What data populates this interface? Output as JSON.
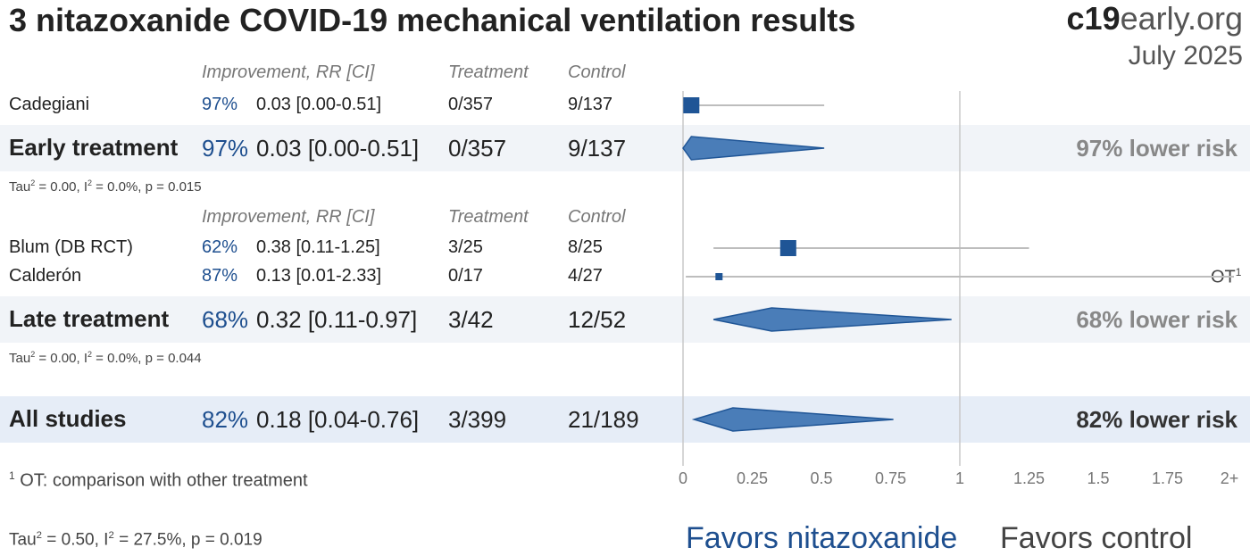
{
  "title": "3 nitazoxanide COVID-19 mechanical ventilation results",
  "brand_bold": "c19",
  "brand_rest": "early.org",
  "date": "July 2025",
  "headers": {
    "improvement": "Improvement, RR [CI]",
    "treatment": "Treatment",
    "control": "Control"
  },
  "footnote_mark": "1",
  "footnote": "OT: comparison with other treatment",
  "ot_label": "OT",
  "tau_overall": {
    "a": "Tau",
    "a_sup": "2",
    "b": " = 0.50, I",
    "b_sup": "2",
    "c": " = 27.5%, p = 0.019"
  },
  "favors_left": "Favors nitazoxanide",
  "favors_right": "Favors control",
  "colors": {
    "accent": "#1e4f8f",
    "marker": "#1f5596",
    "diamond": "#4a7db8"
  },
  "chart_data": {
    "type": "forest",
    "x_ticks": [
      "0",
      "0.25",
      "0.5",
      "0.75",
      "1",
      "1.25",
      "1.5",
      "1.75",
      "2+"
    ],
    "xlim": [
      0,
      2
    ],
    "reference_line": 1,
    "groups": [
      {
        "name": "Early treatment",
        "studies": [
          {
            "name": "Cadegiani",
            "improvement": "97%",
            "rr_text": "0.03 [0.00-0.51]",
            "rr": 0.03,
            "lo": 0.0,
            "hi": 0.51,
            "treatment": "0/357",
            "control": "9/137",
            "weight": "large"
          }
        ],
        "summary": {
          "improvement": "97%",
          "rr_text": "0.03 [0.00-0.51]",
          "rr": 0.03,
          "lo": 0.0,
          "hi": 0.51,
          "treatment": "0/357",
          "control": "9/137",
          "risk_text": "97% lower risk"
        },
        "tau": {
          "a": "Tau",
          "a_sup": "2",
          "b": " = 0.00, I",
          "b_sup": "2",
          "c": " = 0.0%, p = 0.015"
        }
      },
      {
        "name": "Late treatment",
        "studies": [
          {
            "name": "Blum (DB RCT)",
            "improvement": "62%",
            "rr_text": "0.38 [0.11-1.25]",
            "rr": 0.38,
            "lo": 0.11,
            "hi": 1.25,
            "treatment": "3/25",
            "control": "8/25",
            "weight": "large"
          },
          {
            "name": "Calderón",
            "improvement": "87%",
            "rr_text": "0.13 [0.01-2.33]",
            "rr": 0.13,
            "lo": 0.01,
            "hi": 2.33,
            "treatment": "0/17",
            "control": "4/27",
            "weight": "small",
            "note": "1"
          }
        ],
        "summary": {
          "improvement": "68%",
          "rr_text": "0.32 [0.11-0.97]",
          "rr": 0.32,
          "lo": 0.11,
          "hi": 0.97,
          "treatment": "3/42",
          "control": "12/52",
          "risk_text": "68% lower risk"
        },
        "tau": {
          "a": "Tau",
          "a_sup": "2",
          "b": " = 0.00, I",
          "b_sup": "2",
          "c": " = 0.0%, p = 0.044"
        }
      }
    ],
    "overall": {
      "name": "All studies",
      "improvement": "82%",
      "rr_text": "0.18 [0.04-0.76]",
      "rr": 0.18,
      "lo": 0.04,
      "hi": 0.76,
      "treatment": "3/399",
      "control": "21/189",
      "risk_text": "82% lower risk"
    }
  }
}
